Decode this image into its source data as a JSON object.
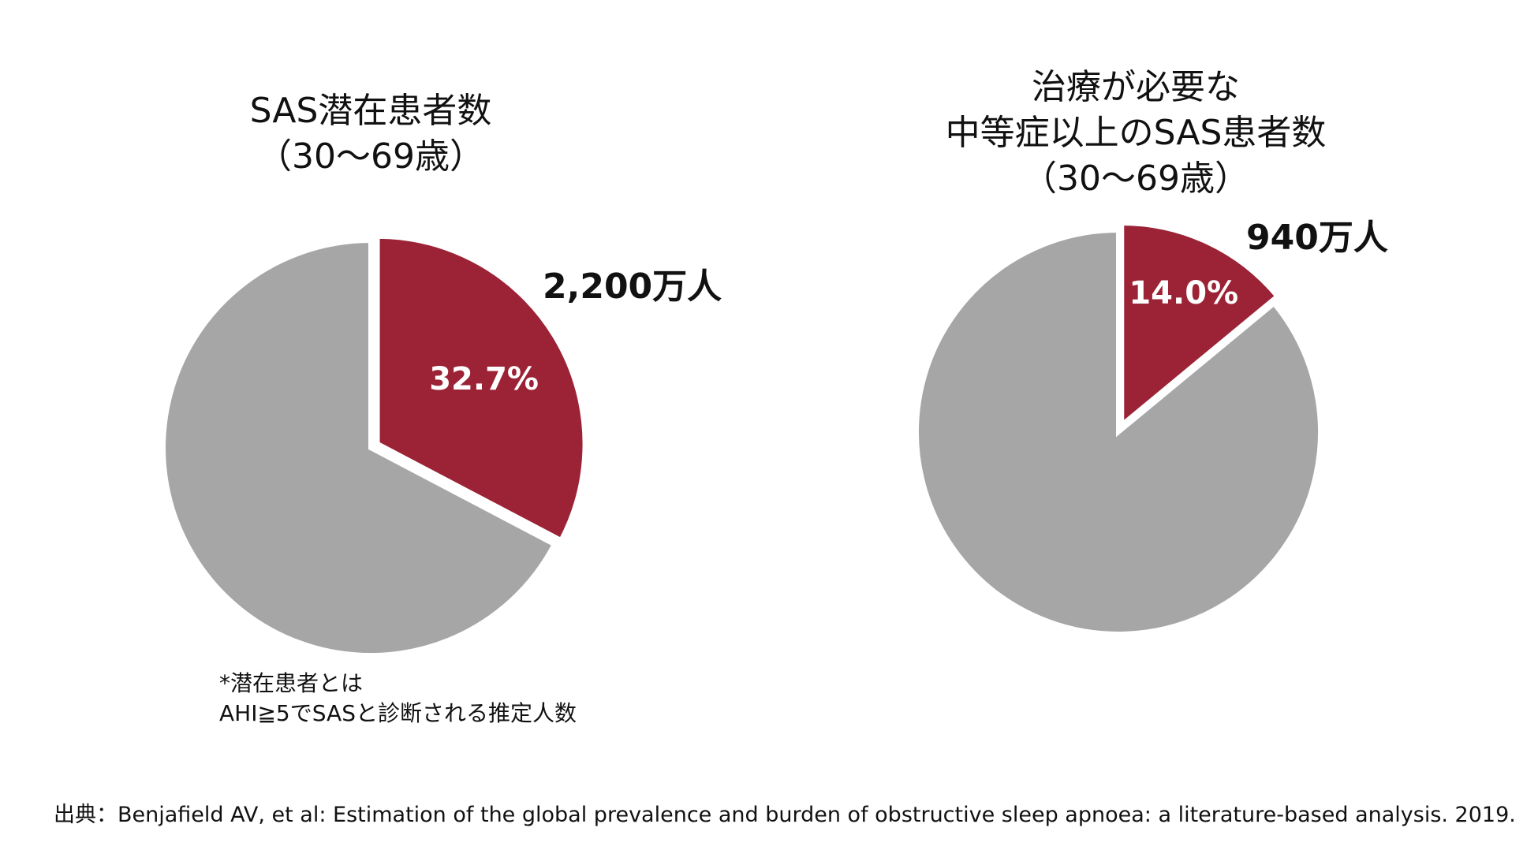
{
  "chart_data": [
    {
      "type": "pie",
      "title_lines": [
        "SAS潜在患者数",
        "（30～69歳）"
      ],
      "slices": [
        {
          "label": "32.7%",
          "value": 32.7,
          "color": "#9b2335",
          "exploded": true
        },
        {
          "label": "",
          "value": 67.3,
          "color": "#a6a6a6",
          "exploded": false
        }
      ],
      "annotation": "2,200万人",
      "note_lines": [
        "*潜在患者とは",
        "AHI≧5でSASと診断される推定人数"
      ]
    },
    {
      "type": "pie",
      "title_lines": [
        "治療が必要な",
        "中等症以上のSAS患者数",
        "（30～69歳）"
      ],
      "slices": [
        {
          "label": "14.0%",
          "value": 14.0,
          "color": "#9b2335",
          "exploded": true
        },
        {
          "label": "",
          "value": 86.0,
          "color": "#a6a6a6",
          "exploded": false
        }
      ],
      "annotation": "940万人"
    }
  ],
  "source": "出典：Benjafield AV, et al: Estimation of the global prevalence and burden of obstructive sleep apnoea: a literature-based analysis. 2019."
}
